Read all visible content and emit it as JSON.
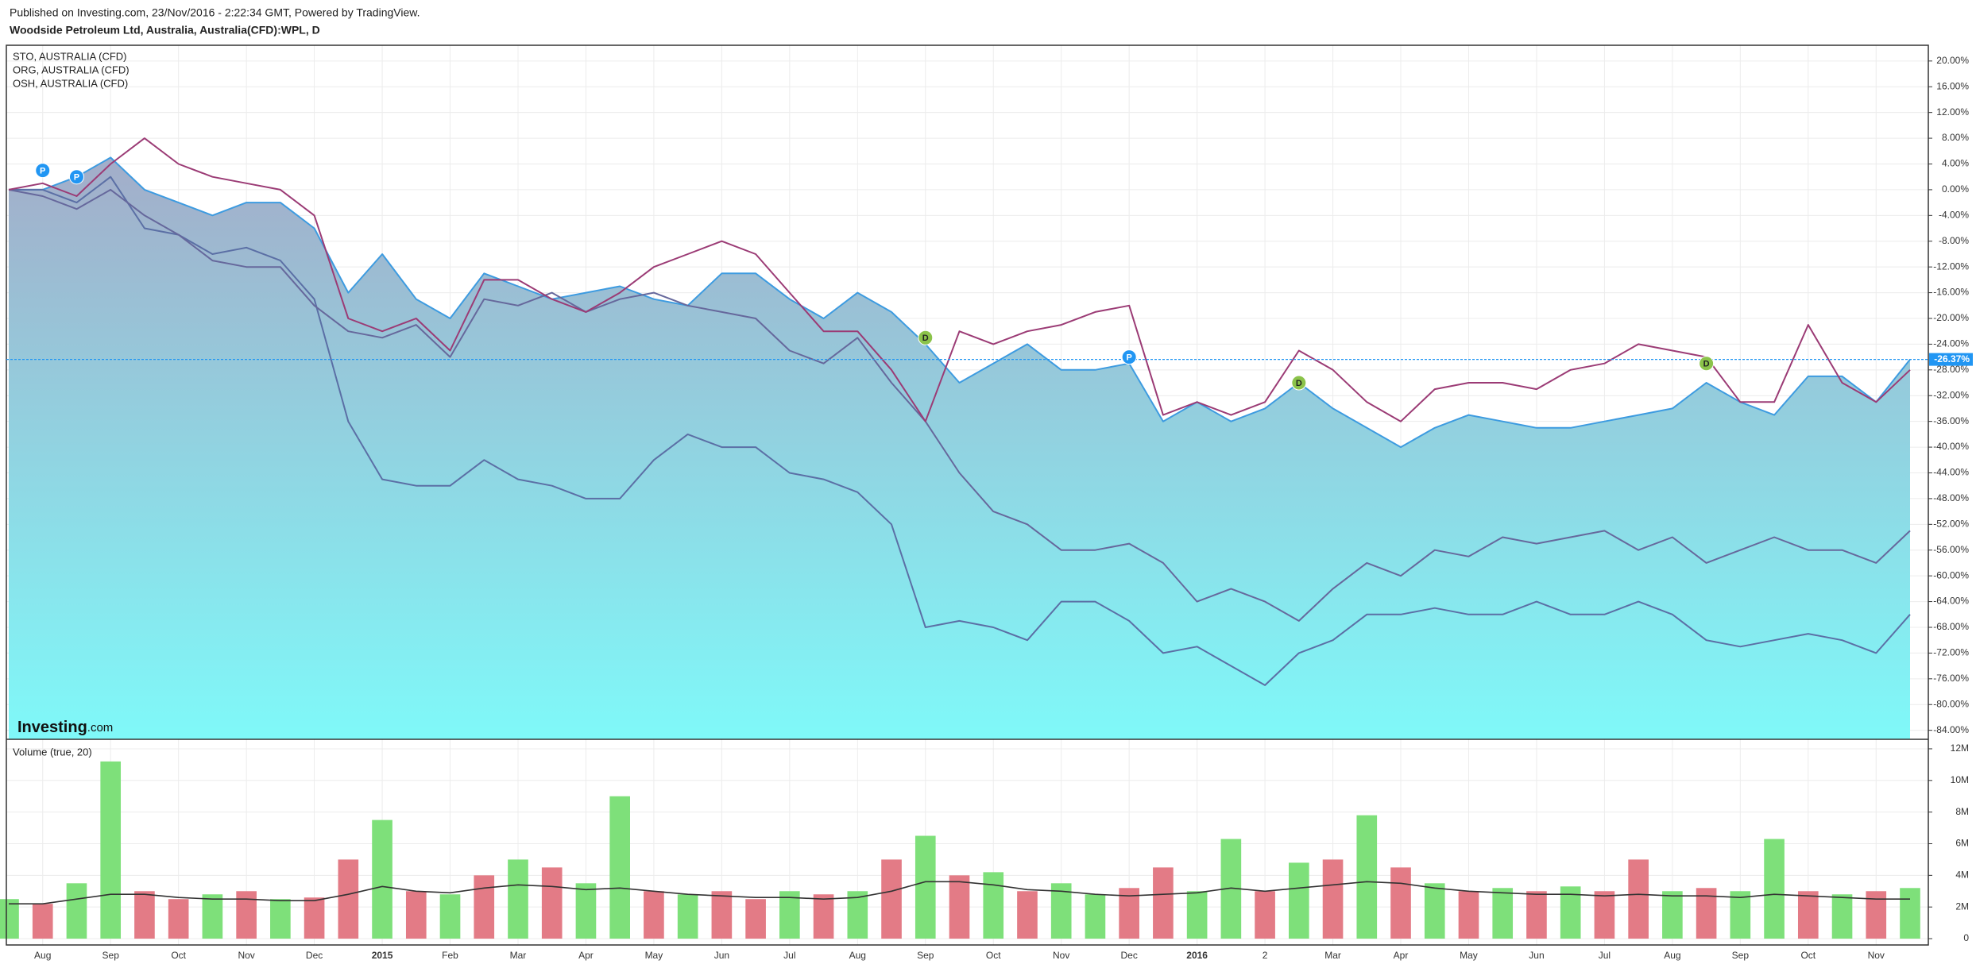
{
  "header": {
    "published": "Published on Investing.com, 23/Nov/2016 - 2:22:34 GMT, Powered by TradingView.",
    "symbol": "Woodside Petroleum Ltd, Australia, Australia(CFD):WPL, D"
  },
  "logo": {
    "brand": "Investing",
    "suffix": ".com"
  },
  "chart_data": [
    {
      "type": "area",
      "categories": [
        null,
        "Aug",
        null,
        "Sep",
        null,
        "Oct",
        null,
        "Nov",
        null,
        "Dec",
        null,
        "2015",
        null,
        "Feb",
        null,
        "Mar",
        null,
        "Apr",
        null,
        "May",
        null,
        "Jun",
        null,
        "Jul",
        null,
        "Aug",
        null,
        "Sep",
        null,
        "Oct",
        null,
        "Nov",
        null,
        "Dec",
        null,
        "2016",
        null,
        "2",
        null,
        "Mar",
        null,
        "Apr",
        null,
        "May",
        null,
        "Jun",
        null,
        "Jul",
        null,
        "Aug",
        null,
        "Sep",
        null,
        "Oct",
        null,
        "Nov",
        null
      ],
      "series": [
        {
          "color": "#3d9be0",
          "style": "area",
          "fill_top": "#a3adc9",
          "fill_bottom": "#7ff9f9",
          "values": [
            0,
            0,
            2,
            5,
            0,
            -2,
            -4,
            -2,
            -2,
            -6,
            -16,
            -10,
            -17,
            -20,
            -13,
            -15,
            -17,
            -16,
            -15,
            -17,
            -18,
            -13,
            -13,
            -17,
            -20,
            -16,
            -19,
            -24,
            -30,
            -27,
            -24,
            -28,
            -28,
            -27,
            -36,
            -33,
            -36,
            -34,
            -30,
            -34,
            -37,
            -40,
            -37,
            -35,
            -36,
            -37,
            -37,
            -36,
            -35,
            -34,
            -30,
            -33,
            -35,
            -29,
            -29,
            -33,
            -26.37
          ]
        },
        {
          "name": "STO, AUSTRALIA (CFD)",
          "color": "#5b6fa5",
          "style": "line",
          "values": [
            0,
            0,
            -2,
            2,
            -6,
            -7,
            -10,
            -9,
            -11,
            -17,
            -36,
            -45,
            -46,
            -46,
            -42,
            -45,
            -46,
            -48,
            -48,
            -42,
            -38,
            -40,
            -40,
            -44,
            -45,
            -47,
            -52,
            -68,
            -67,
            -68,
            -70,
            -64,
            -64,
            -67,
            -72,
            -71,
            -74,
            -77,
            -72,
            -70,
            -66,
            -66,
            -65,
            -66,
            -66,
            -64,
            -66,
            -66,
            -64,
            -66,
            -70,
            -71,
            -70,
            -69,
            -70,
            -72,
            -66
          ]
        },
        {
          "name": "ORG, AUSTRALIA (CFD)",
          "color": "#66689c",
          "style": "line",
          "values": [
            0,
            -1,
            -3,
            0,
            -4,
            -7,
            -11,
            -12,
            -12,
            -18,
            -22,
            -23,
            -21,
            -26,
            -17,
            -18,
            -16,
            -19,
            -17,
            -16,
            -18,
            -19,
            -20,
            -25,
            -27,
            -23,
            -30,
            -36,
            -44,
            -50,
            -52,
            -56,
            -56,
            -55,
            -58,
            -64,
            -62,
            -64,
            -67,
            -62,
            -58,
            -60,
            -56,
            -57,
            -54,
            -55,
            -54,
            -53,
            -56,
            -54,
            -58,
            -56,
            -54,
            -56,
            -56,
            -58,
            -53
          ]
        },
        {
          "name": "OSH, AUSTRALIA (CFD)",
          "color": "#9b3b75",
          "style": "line",
          "values": [
            0,
            1,
            -1,
            4,
            8,
            4,
            2,
            1,
            0,
            -4,
            -20,
            -22,
            -20,
            -25,
            -14,
            -14,
            -17,
            -19,
            -16,
            -12,
            -10,
            -8,
            -10,
            -16,
            -22,
            -22,
            -28,
            -36,
            -22,
            -24,
            -22,
            -21,
            -19,
            -18,
            -35,
            -33,
            -35,
            -33,
            -25,
            -28,
            -33,
            -36,
            -31,
            -30,
            -30,
            -31,
            -28,
            -27,
            -24,
            -25,
            -26,
            -33,
            -33,
            -21,
            -30,
            -33,
            -28
          ]
        }
      ],
      "legend": "top-left",
      "ylim": [
        -85.4,
        22.2
      ],
      "yticks": [
        {
          "value": 20,
          "label": "20.00%"
        },
        {
          "value": 16,
          "label": "16.00%"
        },
        {
          "value": 12,
          "label": "12.00%"
        },
        {
          "value": 8,
          "label": "8.00%"
        },
        {
          "value": 4,
          "label": "4.00%"
        },
        {
          "value": 0,
          "label": "0.00%"
        },
        {
          "value": -4,
          "label": "-4.00%"
        },
        {
          "value": -8,
          "label": "-8.00%"
        },
        {
          "value": -12,
          "label": "-12.00%"
        },
        {
          "value": -16,
          "label": "-16.00%"
        },
        {
          "value": -20,
          "label": "-20.00%"
        },
        {
          "value": -24,
          "label": "-24.00%"
        },
        {
          "value": -28,
          "label": "-28.00%"
        },
        {
          "value": -32,
          "label": "-32.00%"
        },
        {
          "value": -36,
          "label": "-36.00%"
        },
        {
          "value": -40,
          "label": "-40.00%"
        },
        {
          "value": -44,
          "label": "-44.00%"
        },
        {
          "value": -48,
          "label": "-48.00%"
        },
        {
          "value": -52,
          "label": "-52.00%"
        },
        {
          "value": -56,
          "label": "-56.00%"
        },
        {
          "value": -60,
          "label": "-60.00%"
        },
        {
          "value": -64,
          "label": "-64.00%"
        },
        {
          "value": -68,
          "label": "-68.00%"
        },
        {
          "value": -72,
          "label": "-72.00%"
        },
        {
          "value": -76,
          "label": "-76.00%"
        },
        {
          "value": -80,
          "label": "-80.00%"
        },
        {
          "value": -84,
          "label": "-84.00%"
        }
      ],
      "grid": true,
      "price_line": {
        "value": -26.37,
        "label": "-26.37%",
        "color": "#2196f3"
      },
      "events": [
        {
          "label": "P",
          "index": 1,
          "value": 3
        },
        {
          "label": "P",
          "index": 2,
          "value": 2
        },
        {
          "label": "D",
          "index": 27,
          "value": -23
        },
        {
          "label": "P",
          "index": 33,
          "value": -26
        },
        {
          "label": "D",
          "index": 38,
          "value": -30
        },
        {
          "label": "D",
          "index": 50,
          "value": -27
        }
      ],
      "event_colors": {
        "P": "#2196f3",
        "D": "#8bc34a"
      }
    },
    {
      "type": "bar",
      "title": "Volume (true, 20)",
      "values": [
        2500000,
        2200000,
        3500000,
        11200000,
        3000000,
        2500000,
        2800000,
        3000000,
        2500000,
        2600000,
        5000000,
        7500000,
        3000000,
        2800000,
        4000000,
        5000000,
        4500000,
        3500000,
        9000000,
        3000000,
        2800000,
        3000000,
        2500000,
        3000000,
        2800000,
        3000000,
        5000000,
        6500000,
        4000000,
        4200000,
        3000000,
        3500000,
        2800000,
        3200000,
        4500000,
        3000000,
        6300000,
        3000000,
        4800000,
        5000000,
        7800000,
        4500000,
        3500000,
        3000000,
        3200000,
        3000000,
        3300000,
        3000000,
        5000000,
        3000000,
        3200000,
        3000000,
        6300000,
        3000000,
        2800000,
        3000000,
        3200000
      ],
      "directions": [
        "up",
        "down",
        "up",
        "up",
        "down",
        "down",
        "up",
        "down",
        "up",
        "down",
        "down",
        "up",
        "down",
        "up",
        "down",
        "up",
        "down",
        "up",
        "up",
        "down",
        "up",
        "down",
        "down",
        "up",
        "down",
        "up",
        "down",
        "up",
        "down",
        "up",
        "down",
        "up",
        "up",
        "down",
        "down",
        "up",
        "up",
        "down",
        "up",
        "down",
        "up",
        "down",
        "up",
        "down",
        "up",
        "down",
        "up",
        "down",
        "down",
        "up",
        "down",
        "up",
        "up",
        "down",
        "up",
        "down",
        "up"
      ],
      "up_color": "#7ee07a",
      "down_color": "#e37b86",
      "ma": {
        "color": "#333333",
        "values": [
          2200000,
          2200000,
          2500000,
          2800000,
          2800000,
          2600000,
          2500000,
          2500000,
          2400000,
          2400000,
          2800000,
          3300000,
          3000000,
          2900000,
          3200000,
          3400000,
          3300000,
          3100000,
          3200000,
          3000000,
          2800000,
          2700000,
          2600000,
          2600000,
          2500000,
          2600000,
          3000000,
          3600000,
          3600000,
          3400000,
          3100000,
          3000000,
          2800000,
          2700000,
          2800000,
          2900000,
          3200000,
          3000000,
          3200000,
          3400000,
          3600000,
          3500000,
          3200000,
          3000000,
          2900000,
          2800000,
          2800000,
          2700000,
          2800000,
          2700000,
          2700000,
          2600000,
          2800000,
          2700000,
          2600000,
          2500000,
          2500000
        ]
      },
      "ylim": [
        -400000,
        12500000
      ],
      "yticks": [
        0,
        {
          "value": 2000000,
          "label": "2M"
        },
        {
          "value": 4000000,
          "label": "4M"
        },
        {
          "value": 6000000,
          "label": "6M"
        },
        {
          "value": 8000000,
          "label": "8M"
        },
        {
          "value": 10000000,
          "label": "10M"
        },
        {
          "value": 12000000,
          "label": "12M"
        }
      ],
      "grid": true
    }
  ]
}
